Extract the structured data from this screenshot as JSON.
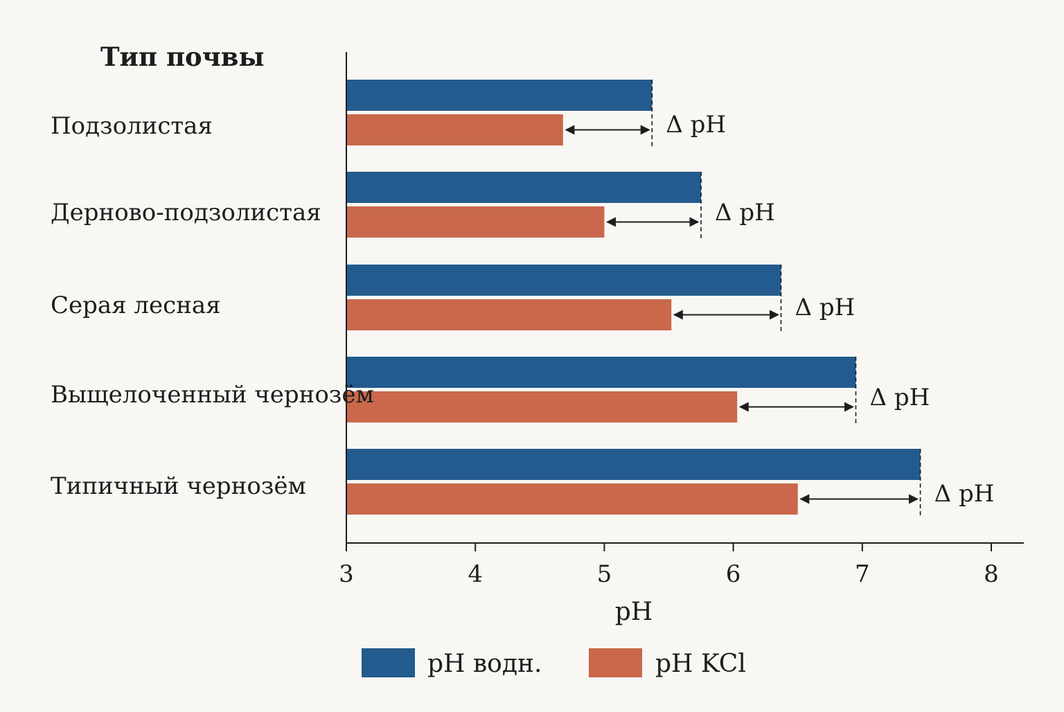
{
  "chart_data": {
    "type": "bar",
    "orientation": "horizontal",
    "category_header": "Тип почвы",
    "categories": [
      "Подзолистая",
      "Дерново-подзолистая",
      "Серая лесная",
      "Выщелоченный чернозём",
      "Типичный чернозём"
    ],
    "series": [
      {
        "name": "pH водн.",
        "color": "#235b8e",
        "values": [
          5.37,
          5.75,
          6.37,
          6.95,
          7.45
        ]
      },
      {
        "name": "pH KCl",
        "color": "#c9684b",
        "values": [
          4.68,
          5.0,
          5.52,
          6.03,
          6.5
        ]
      }
    ],
    "annotation_label": "Δ pH",
    "xlabel": "pH",
    "xlim": [
      3,
      8
    ],
    "xticks": [
      "3",
      "4",
      "5",
      "6",
      "7",
      "8"
    ],
    "grid": false,
    "legend_position": "bottom"
  }
}
